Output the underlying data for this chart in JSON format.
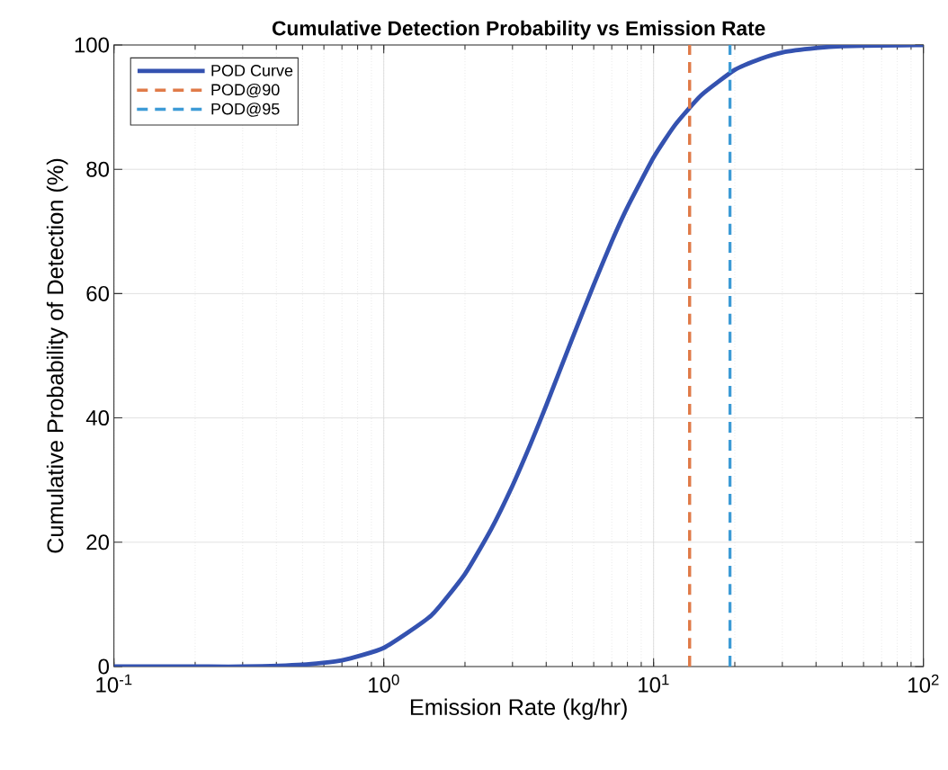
{
  "chart_data": {
    "type": "line",
    "title": "Cumulative Detection Probability vs Emission Rate",
    "xlabel": "Emission Rate (kg/hr)",
    "ylabel": "Cumulative Probability of Detection (%)",
    "log": "x",
    "series": [
      {
        "name": "POD Curve",
        "color": "#3452b0",
        "x": [
          0.1,
          0.2,
          0.3,
          0.5,
          0.7,
          1,
          1.5,
          2,
          2.5,
          3,
          3.5,
          4,
          5,
          6,
          7,
          8,
          10,
          12,
          15,
          20,
          25,
          30,
          40,
          50,
          70,
          100
        ],
        "values": [
          0.0,
          0.0,
          0.0,
          0.3,
          1.0,
          3.0,
          8.2,
          14.9,
          22.1,
          29.1,
          35.8,
          42.0,
          52.8,
          61.4,
          68.4,
          73.9,
          81.9,
          87.1,
          91.9,
          96.0,
          97.8,
          98.8,
          99.5,
          99.8,
          99.9,
          100.0
        ]
      },
      {
        "name": "POD@90",
        "color": "#e07b49",
        "line_style": "dashed",
        "x": [
          13.6,
          13.6
        ],
        "values": [
          0,
          100
        ]
      },
      {
        "name": "POD@95",
        "color": "#3d9bd6",
        "line_style": "dashed",
        "x": [
          19.2,
          19.2
        ],
        "values": [
          0,
          100
        ]
      }
    ],
    "xlim": [
      0.1,
      100
    ],
    "ylim": [
      0,
      100
    ],
    "xticks": [
      {
        "value": 0.1,
        "label": "10$^{-1}$"
      },
      {
        "value": 1,
        "label": "10$^{0}$"
      },
      {
        "value": 10,
        "label": "10$^{1}$"
      },
      {
        "value": 100,
        "label": "10$^{2}$"
      }
    ],
    "yticks": [
      0,
      20,
      40,
      60,
      80,
      100
    ],
    "grid": true,
    "legend": "top left",
    "line_style": "solid",
    "marker": "none"
  }
}
